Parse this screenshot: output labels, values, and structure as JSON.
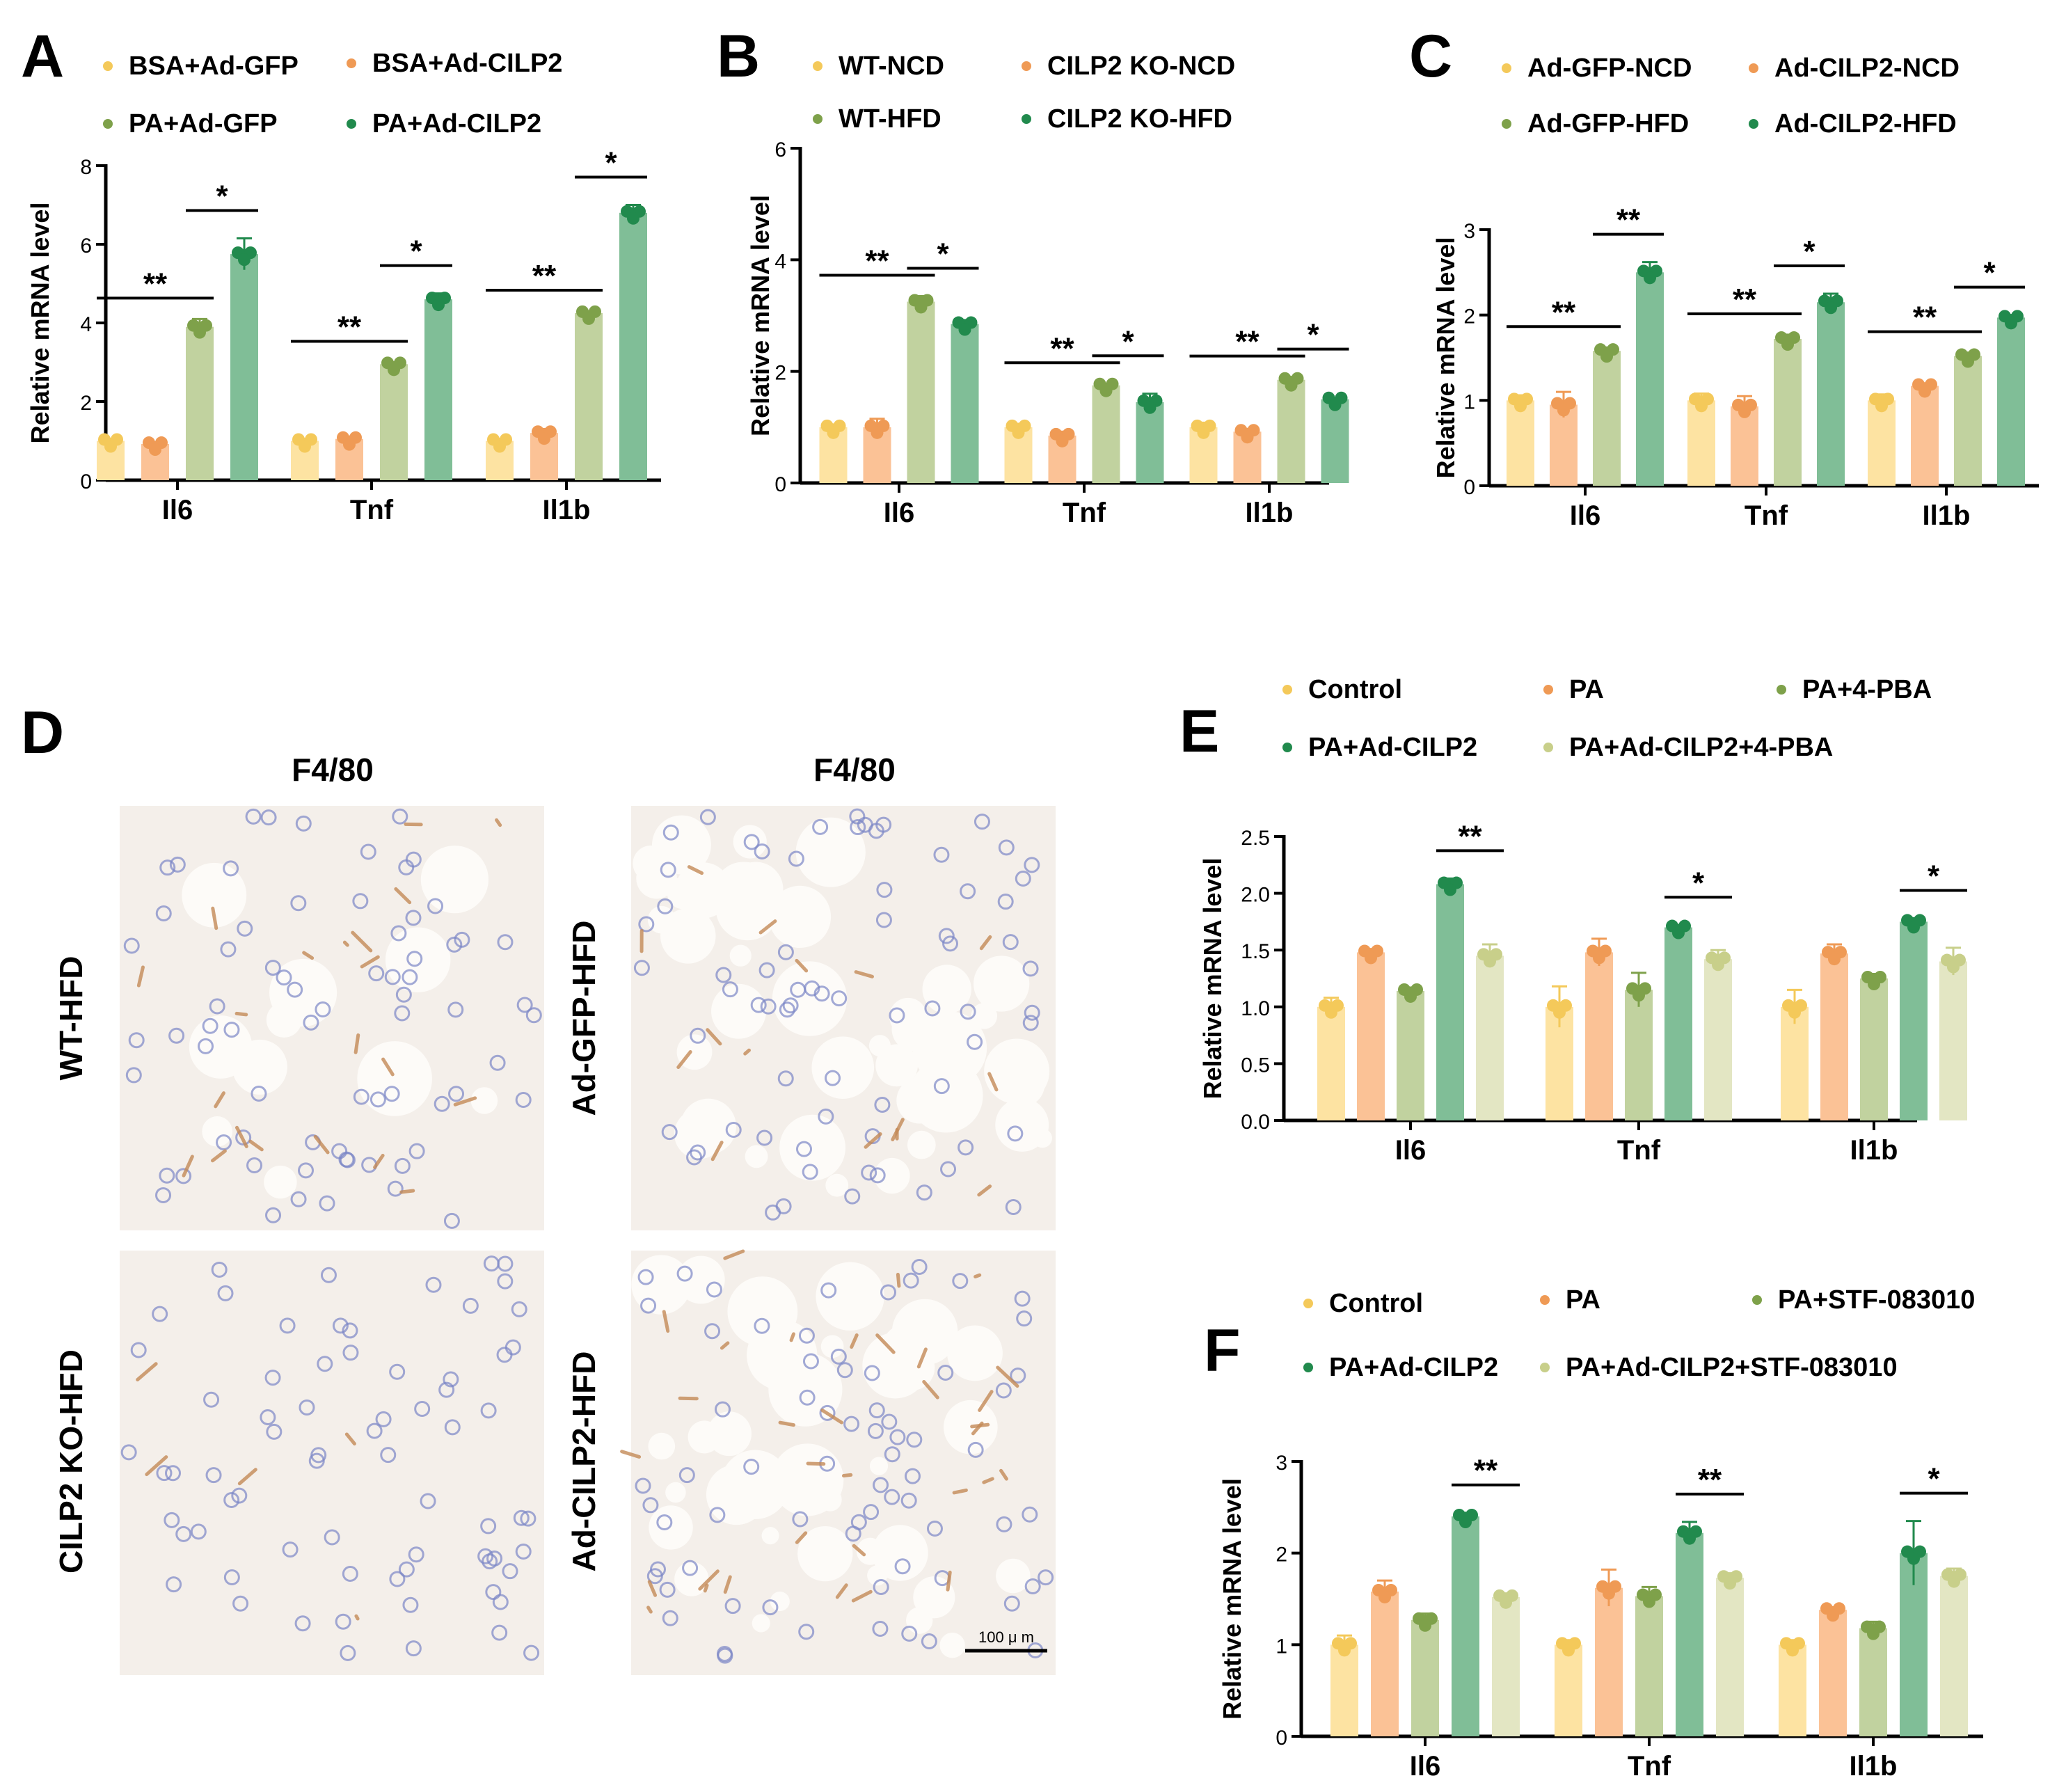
{
  "colors": {
    "c_yellow": "#fde3a2",
    "c_orange": "#fbc296",
    "c_olive": "#c1d29f",
    "c_green": "#80be97",
    "c_pale": "#e3e6c3",
    "d_yellow": "#f4c95a",
    "d_orange": "#ef9a55",
    "d_olive": "#7ea14a",
    "d_green": "#218a4d",
    "d_pale": "#c8cf8a",
    "tissue_bg": "#f4efea",
    "nucleus": "#7b86c6",
    "stain": "#c48a57"
  },
  "chart_data": [
    {
      "panel": "A",
      "type": "bar",
      "ylabel": "Relative mRNA level",
      "ylim": [
        0,
        8
      ],
      "yticks": [
        "0",
        "2",
        "4",
        "6",
        "8"
      ],
      "categories": [
        "Il6",
        "Tnf",
        "Il1b"
      ],
      "series": [
        {
          "name": "BSA+Ad-GFP",
          "color": "c_yellow",
          "dot": "d_yellow",
          "values": [
            1.0,
            1.0,
            1.0
          ],
          "errors": [
            0.05,
            0.05,
            0.05
          ]
        },
        {
          "name": "BSA+Ad-CILP2",
          "color": "c_orange",
          "dot": "d_orange",
          "values": [
            0.92,
            1.05,
            1.2
          ],
          "errors": [
            0.05,
            0.06,
            0.1
          ]
        },
        {
          "name": "PA+Ad-GFP",
          "color": "c_olive",
          "dot": "d_olive",
          "values": [
            3.9,
            2.95,
            4.25
          ],
          "errors": [
            0.2,
            0.05,
            0.05
          ]
        },
        {
          "name": "PA+Ad-CILP2",
          "color": "c_green",
          "dot": "d_green",
          "values": [
            5.75,
            4.6,
            6.8
          ],
          "errors": [
            0.4,
            0.15,
            0.2
          ]
        }
      ],
      "annotations": [
        "**",
        "*",
        "**",
        "*",
        "**",
        "*"
      ]
    },
    {
      "panel": "B",
      "type": "bar",
      "ylabel": "Relative mRNA level",
      "ylim": [
        0,
        6
      ],
      "yticks": [
        "0",
        "2",
        "4",
        "6"
      ],
      "categories": [
        "Il6",
        "Tnf",
        "Il1b"
      ],
      "series": [
        {
          "name": "WT-NCD",
          "color": "c_yellow",
          "dot": "d_yellow",
          "values": [
            1.0,
            1.0,
            1.0
          ],
          "errors": [
            0.05,
            0.06,
            0.08
          ]
        },
        {
          "name": "CILP2 KO-NCD",
          "color": "c_orange",
          "dot": "d_orange",
          "values": [
            1.0,
            0.85,
            0.92
          ],
          "errors": [
            0.15,
            0.07,
            0.05
          ]
        },
        {
          "name": "WT-HFD",
          "color": "c_olive",
          "dot": "d_olive",
          "values": [
            3.25,
            1.75,
            1.85
          ],
          "errors": [
            0.1,
            0.03,
            0.05
          ]
        },
        {
          "name": "CILP2 KO-HFD",
          "color": "c_green",
          "dot": "d_green",
          "values": [
            2.85,
            1.45,
            1.5
          ],
          "errors": [
            0.07,
            0.15,
            0.02
          ]
        }
      ],
      "annotations": [
        "**",
        "*",
        "**",
        "*",
        "**",
        "*"
      ]
    },
    {
      "panel": "C",
      "type": "bar",
      "ylabel": "Relative mRNA level",
      "ylim": [
        0,
        3
      ],
      "yticks": [
        "0",
        "1",
        "2",
        "3"
      ],
      "categories": [
        "Il6",
        "Tnf",
        "Il1b"
      ],
      "series": [
        {
          "name": "Ad-GFP-NCD",
          "color": "c_yellow",
          "dot": "d_yellow",
          "values": [
            1.0,
            1.0,
            1.0
          ],
          "errors": [
            0.06,
            0.08,
            0.07
          ]
        },
        {
          "name": "Ad-CILP2-NCD",
          "color": "c_orange",
          "dot": "d_orange",
          "values": [
            0.95,
            0.93,
            1.17
          ],
          "errors": [
            0.15,
            0.12,
            0.03
          ]
        },
        {
          "name": "Ad-GFP-HFD",
          "color": "c_olive",
          "dot": "d_olive",
          "values": [
            1.58,
            1.72,
            1.52
          ],
          "errors": [
            0.04,
            0.05,
            0.04
          ]
        },
        {
          "name": "Ad-CILP2-HFD",
          "color": "c_green",
          "dot": "d_green",
          "values": [
            2.5,
            2.15,
            1.97
          ],
          "errors": [
            0.12,
            0.1,
            0.03
          ]
        }
      ],
      "annotations": [
        "**",
        "**",
        "**",
        "*",
        "**",
        "*"
      ]
    },
    {
      "panel": "E",
      "type": "bar",
      "ylabel": "Relative mRNA level",
      "ylim": [
        0,
        2.5
      ],
      "yticks": [
        "0.0",
        "0.5",
        "1.0",
        "1.5",
        "2.0",
        "2.5"
      ],
      "categories": [
        "Il6",
        "Tnf",
        "Il1b"
      ],
      "series": [
        {
          "name": "Control",
          "color": "c_yellow",
          "dot": "d_yellow",
          "values": [
            1.0,
            1.0,
            1.0
          ],
          "errors": [
            0.08,
            0.18,
            0.15
          ]
        },
        {
          "name": "PA",
          "color": "c_orange",
          "dot": "d_orange",
          "values": [
            1.48,
            1.48,
            1.47
          ],
          "errors": [
            0.03,
            0.12,
            0.08
          ]
        },
        {
          "name": "PA+4-PBA",
          "color": "c_olive",
          "dot": "d_olive",
          "values": [
            1.14,
            1.15,
            1.25
          ],
          "errors": [
            0.03,
            0.15,
            0.04
          ]
        },
        {
          "name": "PA+Ad-CILP2",
          "color": "c_green",
          "dot": "d_green",
          "values": [
            2.08,
            1.7,
            1.75
          ],
          "errors": [
            0.05,
            0.02,
            0.03
          ]
        },
        {
          "name": "PA+Ad-CILP2+4-PBA",
          "color": "c_pale",
          "dot": "d_pale",
          "values": [
            1.45,
            1.42,
            1.4
          ],
          "errors": [
            0.1,
            0.08,
            0.12
          ]
        }
      ],
      "annotations": [
        "**",
        "*",
        "*"
      ]
    },
    {
      "panel": "F",
      "type": "bar",
      "ylabel": "Relative mRNA level",
      "ylim": [
        0,
        3
      ],
      "yticks": [
        "0",
        "1",
        "2",
        "3"
      ],
      "categories": [
        "Il6",
        "Tnf",
        "Il1b"
      ],
      "series": [
        {
          "name": "Control",
          "color": "c_yellow",
          "dot": "d_yellow",
          "values": [
            1.0,
            1.0,
            1.0
          ],
          "errors": [
            0.1,
            0.05,
            0.05
          ]
        },
        {
          "name": "PA",
          "color": "c_orange",
          "dot": "d_orange",
          "values": [
            1.58,
            1.62,
            1.38
          ],
          "errors": [
            0.12,
            0.2,
            0.03
          ]
        },
        {
          "name": "PA+STF-083010",
          "color": "c_olive",
          "dot": "d_olive",
          "values": [
            1.27,
            1.53,
            1.18
          ],
          "errors": [
            0.07,
            0.1,
            0.07
          ]
        },
        {
          "name": "PA+Ad-CILP2",
          "color": "c_green",
          "dot": "d_green",
          "values": [
            2.4,
            2.22,
            2.0
          ],
          "errors": [
            0.04,
            0.12,
            0.35
          ]
        },
        {
          "name": "PA+Ad-CILP2+STF-083010",
          "color": "c_pale",
          "dot": "d_pale",
          "values": [
            1.52,
            1.73,
            1.75
          ],
          "errors": [
            0.04,
            0.05,
            0.08
          ]
        }
      ],
      "annotations": [
        "**",
        "**",
        "*"
      ]
    }
  ],
  "micrographs": {
    "panel": "D",
    "stain_title": "F4/80",
    "row_labels": [
      "WT-HFD",
      "Ad-GFP-HFD",
      "CILP2 KO-HFD",
      "Ad-CILP2-HFD"
    ],
    "scale_bar": "100 μ m"
  }
}
